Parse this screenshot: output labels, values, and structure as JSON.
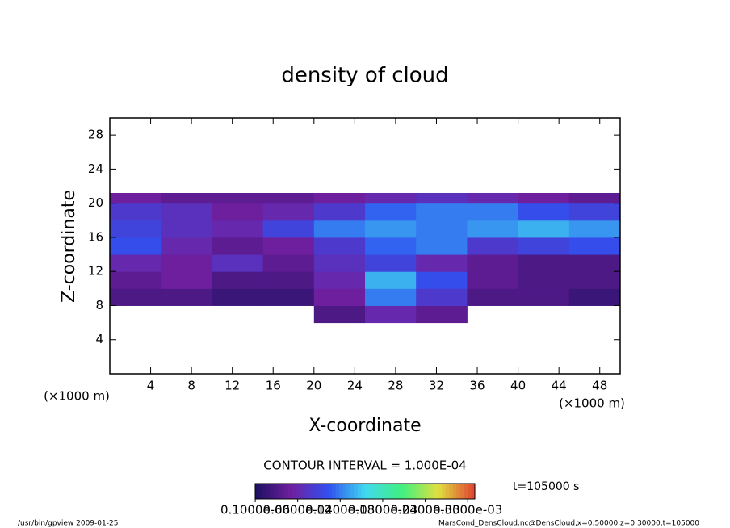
{
  "chart_data": {
    "type": "heatmap",
    "title": "density of cloud",
    "xlabel": "X-coordinate",
    "ylabel": "Z-coordinate",
    "x_unit": "(×1000 m)",
    "x_unit_right": "(×1000 m)",
    "xlim": [
      0,
      50
    ],
    "ylim": [
      0,
      30
    ],
    "xticks": [
      4,
      8,
      12,
      16,
      20,
      24,
      28,
      32,
      36,
      40,
      44,
      48
    ],
    "yticks": [
      4,
      8,
      12,
      16,
      20,
      24,
      28
    ],
    "xbins": [
      0,
      5,
      10,
      15,
      20,
      25,
      30,
      35,
      40,
      45,
      50
    ],
    "ybins": [
      6,
      8,
      10,
      12,
      14,
      16,
      18,
      20,
      21.2
    ],
    "values": [
      [
        null,
        null,
        null,
        null,
        3e-05,
        6e-05,
        4e-05,
        null,
        null,
        null
      ],
      [
        3e-05,
        3e-05,
        2e-05,
        2e-05,
        5e-05,
        0.00012,
        8e-05,
        3e-05,
        3e-05,
        2e-05
      ],
      [
        4e-05,
        5e-05,
        3e-05,
        3e-05,
        6e-05,
        0.00014,
        0.0001,
        4e-05,
        3e-05,
        3e-05
      ],
      [
        6e-05,
        5e-05,
        7e-05,
        4e-05,
        7e-05,
        9e-05,
        6e-05,
        4e-05,
        3e-05,
        3e-05
      ],
      [
        0.0001,
        6e-05,
        4e-05,
        5e-05,
        8e-05,
        0.00011,
        0.00012,
        8e-05,
        9e-05,
        0.0001
      ],
      [
        9e-05,
        7e-05,
        6e-05,
        9e-05,
        0.00012,
        0.00013,
        0.00012,
        0.00013,
        0.00014,
        0.00013
      ],
      [
        8e-05,
        7e-05,
        5e-05,
        6e-05,
        8e-05,
        0.00011,
        0.00012,
        0.00012,
        0.0001,
        9e-05
      ],
      [
        5e-05,
        4e-05,
        4e-05,
        4e-05,
        5e-05,
        6e-05,
        7e-05,
        6e-05,
        5e-05,
        4e-05
      ]
    ],
    "clim": [
      0,
      0.00031
    ],
    "colors": [
      "#1a1060",
      "#7020a0",
      "#3050f0",
      "#40d8f0",
      "#40f080",
      "#e0e040",
      "#e04030"
    ],
    "colorbar_ticks": [
      {
        "value": 1e-07,
        "label": "0.1000e-06"
      },
      {
        "value": 6e-05,
        "label": "0.6000e-04"
      },
      {
        "value": 0.00012,
        "label": "0.1200e-03"
      },
      {
        "value": 0.00018,
        "label": "0.1800e-03"
      },
      {
        "value": 0.00024,
        "label": "0.2400e-03"
      },
      {
        "value": 0.0003,
        "label": "0.3000e-03"
      }
    ],
    "contour_note": "CONTOUR INTERVAL = 1.000E-04",
    "time_label": "t=105000 s",
    "footer_left": "/usr/bin/gpview  2009-01-25",
    "footer_right": "MarsCond_DensCloud.nc@DensCloud,x=0:50000,z=0:30000,t=105000"
  }
}
